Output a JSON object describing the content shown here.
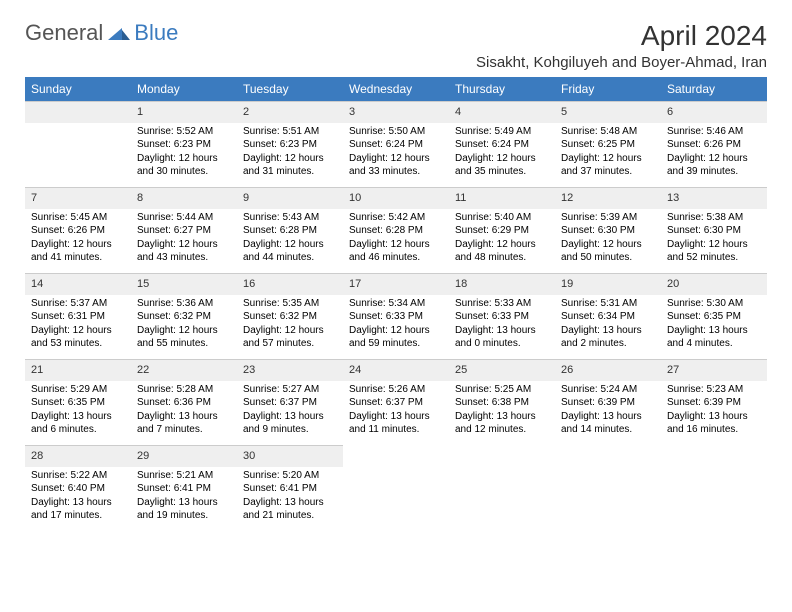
{
  "logo": {
    "part1": "General",
    "part2": "Blue"
  },
  "title": "April 2024",
  "location": "Sisakht, Kohgiluyeh and Boyer-Ahmad, Iran",
  "colors": {
    "header_bg": "#3b7bbf",
    "header_text": "#ffffff",
    "daynum_bg": "#efefef",
    "border": "#cccccc",
    "text": "#000000"
  },
  "fonts": {
    "title_size": 28,
    "location_size": 15,
    "th_size": 12,
    "cell_size": 10
  },
  "weekdays": [
    "Sunday",
    "Monday",
    "Tuesday",
    "Wednesday",
    "Thursday",
    "Friday",
    "Saturday"
  ],
  "grid": [
    [
      null,
      {
        "n": "1",
        "sr": "Sunrise: 5:52 AM",
        "ss": "Sunset: 6:23 PM",
        "d1": "Daylight: 12 hours",
        "d2": "and 30 minutes."
      },
      {
        "n": "2",
        "sr": "Sunrise: 5:51 AM",
        "ss": "Sunset: 6:23 PM",
        "d1": "Daylight: 12 hours",
        "d2": "and 31 minutes."
      },
      {
        "n": "3",
        "sr": "Sunrise: 5:50 AM",
        "ss": "Sunset: 6:24 PM",
        "d1": "Daylight: 12 hours",
        "d2": "and 33 minutes."
      },
      {
        "n": "4",
        "sr": "Sunrise: 5:49 AM",
        "ss": "Sunset: 6:24 PM",
        "d1": "Daylight: 12 hours",
        "d2": "and 35 minutes."
      },
      {
        "n": "5",
        "sr": "Sunrise: 5:48 AM",
        "ss": "Sunset: 6:25 PM",
        "d1": "Daylight: 12 hours",
        "d2": "and 37 minutes."
      },
      {
        "n": "6",
        "sr": "Sunrise: 5:46 AM",
        "ss": "Sunset: 6:26 PM",
        "d1": "Daylight: 12 hours",
        "d2": "and 39 minutes."
      }
    ],
    [
      {
        "n": "7",
        "sr": "Sunrise: 5:45 AM",
        "ss": "Sunset: 6:26 PM",
        "d1": "Daylight: 12 hours",
        "d2": "and 41 minutes."
      },
      {
        "n": "8",
        "sr": "Sunrise: 5:44 AM",
        "ss": "Sunset: 6:27 PM",
        "d1": "Daylight: 12 hours",
        "d2": "and 43 minutes."
      },
      {
        "n": "9",
        "sr": "Sunrise: 5:43 AM",
        "ss": "Sunset: 6:28 PM",
        "d1": "Daylight: 12 hours",
        "d2": "and 44 minutes."
      },
      {
        "n": "10",
        "sr": "Sunrise: 5:42 AM",
        "ss": "Sunset: 6:28 PM",
        "d1": "Daylight: 12 hours",
        "d2": "and 46 minutes."
      },
      {
        "n": "11",
        "sr": "Sunrise: 5:40 AM",
        "ss": "Sunset: 6:29 PM",
        "d1": "Daylight: 12 hours",
        "d2": "and 48 minutes."
      },
      {
        "n": "12",
        "sr": "Sunrise: 5:39 AM",
        "ss": "Sunset: 6:30 PM",
        "d1": "Daylight: 12 hours",
        "d2": "and 50 minutes."
      },
      {
        "n": "13",
        "sr": "Sunrise: 5:38 AM",
        "ss": "Sunset: 6:30 PM",
        "d1": "Daylight: 12 hours",
        "d2": "and 52 minutes."
      }
    ],
    [
      {
        "n": "14",
        "sr": "Sunrise: 5:37 AM",
        "ss": "Sunset: 6:31 PM",
        "d1": "Daylight: 12 hours",
        "d2": "and 53 minutes."
      },
      {
        "n": "15",
        "sr": "Sunrise: 5:36 AM",
        "ss": "Sunset: 6:32 PM",
        "d1": "Daylight: 12 hours",
        "d2": "and 55 minutes."
      },
      {
        "n": "16",
        "sr": "Sunrise: 5:35 AM",
        "ss": "Sunset: 6:32 PM",
        "d1": "Daylight: 12 hours",
        "d2": "and 57 minutes."
      },
      {
        "n": "17",
        "sr": "Sunrise: 5:34 AM",
        "ss": "Sunset: 6:33 PM",
        "d1": "Daylight: 12 hours",
        "d2": "and 59 minutes."
      },
      {
        "n": "18",
        "sr": "Sunrise: 5:33 AM",
        "ss": "Sunset: 6:33 PM",
        "d1": "Daylight: 13 hours",
        "d2": "and 0 minutes."
      },
      {
        "n": "19",
        "sr": "Sunrise: 5:31 AM",
        "ss": "Sunset: 6:34 PM",
        "d1": "Daylight: 13 hours",
        "d2": "and 2 minutes."
      },
      {
        "n": "20",
        "sr": "Sunrise: 5:30 AM",
        "ss": "Sunset: 6:35 PM",
        "d1": "Daylight: 13 hours",
        "d2": "and 4 minutes."
      }
    ],
    [
      {
        "n": "21",
        "sr": "Sunrise: 5:29 AM",
        "ss": "Sunset: 6:35 PM",
        "d1": "Daylight: 13 hours",
        "d2": "and 6 minutes."
      },
      {
        "n": "22",
        "sr": "Sunrise: 5:28 AM",
        "ss": "Sunset: 6:36 PM",
        "d1": "Daylight: 13 hours",
        "d2": "and 7 minutes."
      },
      {
        "n": "23",
        "sr": "Sunrise: 5:27 AM",
        "ss": "Sunset: 6:37 PM",
        "d1": "Daylight: 13 hours",
        "d2": "and 9 minutes."
      },
      {
        "n": "24",
        "sr": "Sunrise: 5:26 AM",
        "ss": "Sunset: 6:37 PM",
        "d1": "Daylight: 13 hours",
        "d2": "and 11 minutes."
      },
      {
        "n": "25",
        "sr": "Sunrise: 5:25 AM",
        "ss": "Sunset: 6:38 PM",
        "d1": "Daylight: 13 hours",
        "d2": "and 12 minutes."
      },
      {
        "n": "26",
        "sr": "Sunrise: 5:24 AM",
        "ss": "Sunset: 6:39 PM",
        "d1": "Daylight: 13 hours",
        "d2": "and 14 minutes."
      },
      {
        "n": "27",
        "sr": "Sunrise: 5:23 AM",
        "ss": "Sunset: 6:39 PM",
        "d1": "Daylight: 13 hours",
        "d2": "and 16 minutes."
      }
    ],
    [
      {
        "n": "28",
        "sr": "Sunrise: 5:22 AM",
        "ss": "Sunset: 6:40 PM",
        "d1": "Daylight: 13 hours",
        "d2": "and 17 minutes."
      },
      {
        "n": "29",
        "sr": "Sunrise: 5:21 AM",
        "ss": "Sunset: 6:41 PM",
        "d1": "Daylight: 13 hours",
        "d2": "and 19 minutes."
      },
      {
        "n": "30",
        "sr": "Sunrise: 5:20 AM",
        "ss": "Sunset: 6:41 PM",
        "d1": "Daylight: 13 hours",
        "d2": "and 21 minutes."
      },
      null,
      null,
      null,
      null
    ]
  ]
}
